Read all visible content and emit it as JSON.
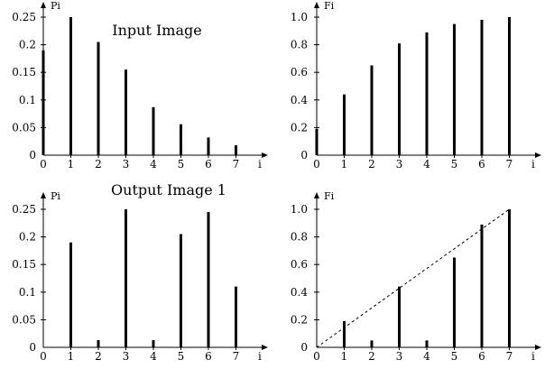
{
  "chart_data": [
    {
      "type": "bar",
      "title": "Input Image",
      "xlabel": "i",
      "ylabel": "Pi",
      "categories": [
        "0",
        "1",
        "2",
        "3",
        "4",
        "5",
        "6",
        "7"
      ],
      "values": [
        0.19,
        0.25,
        0.205,
        0.155,
        0.087,
        0.056,
        0.032,
        0.018
      ],
      "xlim": [
        0,
        7
      ],
      "ylim": [
        0,
        0.25
      ],
      "yticks": [
        "0",
        "0.05",
        "0.1",
        "0.15",
        "0.2",
        "0.25"
      ],
      "xticks": [
        "0",
        "1",
        "2",
        "3",
        "4",
        "5",
        "6",
        "7"
      ],
      "grid": false
    },
    {
      "type": "bar",
      "title": "",
      "xlabel": "i",
      "ylabel": "Fi",
      "categories": [
        "0",
        "1",
        "2",
        "3",
        "4",
        "5",
        "6",
        "7"
      ],
      "values": [
        0.19,
        0.44,
        0.65,
        0.81,
        0.89,
        0.95,
        0.98,
        1.0
      ],
      "xlim": [
        0,
        7
      ],
      "ylim": [
        0,
        1.0
      ],
      "yticks": [
        "0",
        "0.2",
        "0.4",
        "0.6",
        "0.8",
        "1.0"
      ],
      "xticks": [
        "0",
        "1",
        "2",
        "3",
        "4",
        "5",
        "6",
        "7"
      ],
      "grid": false
    },
    {
      "type": "bar",
      "title": "Output Image 1",
      "xlabel": "i",
      "ylabel": "Pi",
      "categories": [
        "0",
        "1",
        "2",
        "3",
        "4",
        "5",
        "6",
        "7"
      ],
      "values": [
        0,
        0.19,
        0.013,
        0.25,
        0.013,
        0.205,
        0.245,
        0.11
      ],
      "xlim": [
        0,
        7
      ],
      "ylim": [
        0,
        0.25
      ],
      "yticks": [
        "0",
        "0.05",
        "0.1",
        "0.15",
        "0.2",
        "0.25"
      ],
      "xticks": [
        "0",
        "1",
        "2",
        "3",
        "4",
        "5",
        "6",
        "7"
      ],
      "grid": false
    },
    {
      "type": "bar",
      "title": "",
      "xlabel": "i",
      "ylabel": "Fi",
      "categories": [
        "0",
        "1",
        "2",
        "3",
        "4",
        "5",
        "6",
        "7"
      ],
      "values": [
        0,
        0.19,
        0.05,
        0.44,
        0.05,
        0.65,
        0.89,
        1.0
      ],
      "reference_line": {
        "style": "dotted",
        "from": [
          0,
          0
        ],
        "to": [
          7,
          1.0
        ]
      },
      "xlim": [
        0,
        7
      ],
      "ylim": [
        0,
        1.0
      ],
      "yticks": [
        "0",
        "0.2",
        "0.4",
        "0.6",
        "0.8",
        "1.0"
      ],
      "xticks": [
        "0",
        "1",
        "2",
        "3",
        "4",
        "5",
        "6",
        "7"
      ],
      "grid": false
    }
  ],
  "colors": {
    "bars": "#000000",
    "axes": "#000000",
    "background": "#ffffff"
  }
}
